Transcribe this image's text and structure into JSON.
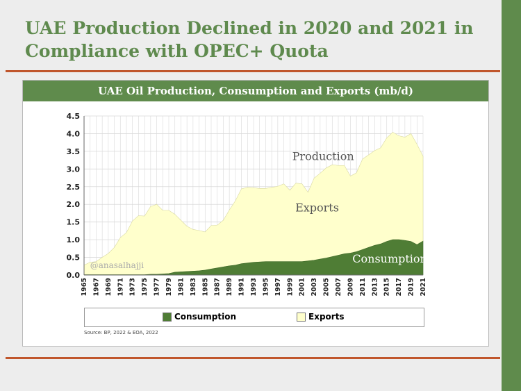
{
  "slide": {
    "title": "UAE Production Declined in 2020 and 2021 in Compliance with OPEC+ Quota",
    "source": "Source: BP, 2022 & EOA, 2022",
    "watermark": "@anasalhajji"
  },
  "colors": {
    "accent_green": "#5f8b4c",
    "rule_orange": "#c0562c",
    "exports_fill": "#ffffcc",
    "consumption_fill": "#4f7d35"
  },
  "chart_data": {
    "type": "area",
    "title": "UAE Oil Production, Consumption and Exports (mb/d)",
    "stacked": true,
    "x": [
      1965,
      1966,
      1967,
      1968,
      1969,
      1970,
      1971,
      1972,
      1973,
      1974,
      1975,
      1976,
      1977,
      1978,
      1979,
      1980,
      1981,
      1982,
      1983,
      1984,
      1985,
      1986,
      1987,
      1988,
      1989,
      1990,
      1991,
      1992,
      1993,
      1994,
      1995,
      1996,
      1997,
      1998,
      1999,
      2000,
      2001,
      2002,
      2003,
      2004,
      2005,
      2006,
      2007,
      2008,
      2009,
      2010,
      2011,
      2012,
      2013,
      2014,
      2015,
      2016,
      2017,
      2018,
      2019,
      2020,
      2021
    ],
    "x_tick_labels": [
      "1965",
      "1967",
      "1969",
      "1971",
      "1973",
      "1975",
      "1977",
      "1979",
      "1981",
      "1983",
      "1985",
      "1987",
      "1989",
      "1991",
      "1993",
      "1995",
      "1997",
      "1999",
      "2001",
      "2003",
      "2005",
      "2007",
      "2009",
      "2011",
      "2013",
      "2015",
      "2017",
      "2019",
      "2021"
    ],
    "series": [
      {
        "name": "Consumption",
        "color": "#4f7d35",
        "values": [
          0.01,
          0.01,
          0.01,
          0.01,
          0.01,
          0.01,
          0.01,
          0.01,
          0.01,
          0.01,
          0.01,
          0.02,
          0.02,
          0.03,
          0.04,
          0.08,
          0.09,
          0.1,
          0.11,
          0.12,
          0.14,
          0.17,
          0.2,
          0.23,
          0.26,
          0.28,
          0.32,
          0.34,
          0.36,
          0.37,
          0.38,
          0.38,
          0.38,
          0.38,
          0.38,
          0.38,
          0.38,
          0.4,
          0.42,
          0.45,
          0.48,
          0.52,
          0.56,
          0.6,
          0.62,
          0.66,
          0.72,
          0.78,
          0.84,
          0.88,
          0.95,
          1.0,
          1.0,
          0.98,
          0.95,
          0.86,
          0.96
        ]
      },
      {
        "name": "Exports",
        "color": "#ffffcc",
        "values": [
          0.27,
          0.35,
          0.37,
          0.49,
          0.6,
          0.77,
          1.05,
          1.19,
          1.52,
          1.67,
          1.66,
          1.92,
          1.98,
          1.8,
          1.79,
          1.64,
          1.46,
          1.28,
          1.18,
          1.14,
          1.08,
          1.23,
          1.21,
          1.32,
          1.58,
          1.82,
          2.12,
          2.14,
          2.11,
          2.08,
          2.07,
          2.1,
          2.13,
          2.2,
          2.02,
          2.22,
          2.2,
          1.94,
          2.32,
          2.43,
          2.55,
          2.6,
          2.54,
          2.5,
          2.18,
          2.23,
          2.56,
          2.62,
          2.68,
          2.72,
          2.93,
          3.04,
          2.94,
          2.92,
          3.05,
          2.84,
          2.4
        ]
      }
    ],
    "annotations": [
      {
        "text": "Production",
        "x": 2004.5,
        "y": 3.25
      },
      {
        "text": "Exports",
        "x": 2003.5,
        "y": 1.8
      },
      {
        "text": "Consumption",
        "x": 2015.5,
        "y": 0.35
      }
    ],
    "xlabel": "",
    "ylabel": "",
    "xlim": [
      1965,
      2021
    ],
    "ylim": [
      0,
      4.5
    ],
    "y_ticks": [
      "0.0",
      "0.5",
      "1.0",
      "1.5",
      "2.0",
      "2.5",
      "3.0",
      "3.5",
      "4.0",
      "4.5"
    ],
    "grid": true,
    "legend": {
      "position": "bottom",
      "entries": [
        "Consumption",
        "Exports"
      ]
    }
  }
}
